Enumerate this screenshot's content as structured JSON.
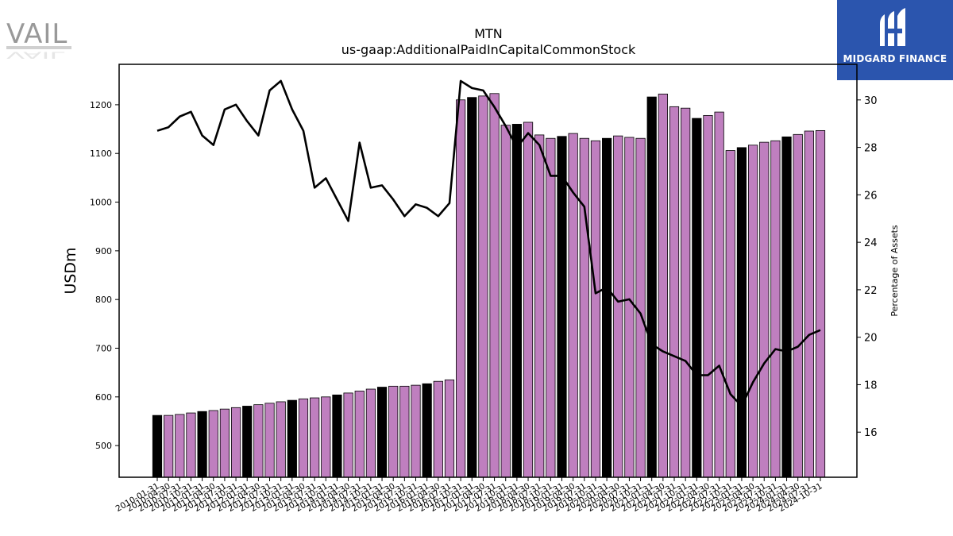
{
  "brand": {
    "left_logo_text": "VAIL",
    "right_logo_text": "MIDGARD FINANCE",
    "right_logo_bg": "#2b55ae"
  },
  "chart_data": {
    "type": "bar",
    "title": "MTN",
    "subtitle": "us-gaap:AdditionalPaidInCapitalCommonStock",
    "ylabel": "USDm",
    "y2label": "Percentage of Assets",
    "ylim": [
      435,
      1283
    ],
    "y2lim": [
      14.1,
      31.5
    ],
    "yticks": [
      500,
      600,
      700,
      800,
      900,
      1000,
      1100,
      1200
    ],
    "y2ticks": [
      16,
      18,
      20,
      22,
      24,
      26,
      28,
      30
    ],
    "bar_colors": {
      "annual": "#000000",
      "quarterly": "#bf7fbf"
    },
    "line_color": "#000000",
    "grid": false,
    "categories": [
      "2010-01-31",
      "2010-04-30",
      "2010-07-31",
      "2010-10-31",
      "2011-01-31",
      "2011-04-30",
      "2011-07-31",
      "2011-10-31",
      "2012-01-31",
      "2012-04-30",
      "2012-07-31",
      "2012-10-31",
      "2013-01-31",
      "2013-04-30",
      "2013-07-31",
      "2013-10-31",
      "2014-01-31",
      "2014-04-30",
      "2014-07-31",
      "2014-10-31",
      "2015-01-31",
      "2015-04-30",
      "2015-07-31",
      "2015-10-31",
      "2016-01-31",
      "2016-04-30",
      "2016-07-31",
      "2016-10-31",
      "2017-01-31",
      "2017-04-30",
      "2017-07-31",
      "2017-10-31",
      "2018-01-31",
      "2018-04-30",
      "2018-07-31",
      "2018-10-31",
      "2019-01-31",
      "2019-04-30",
      "2019-07-31",
      "2019-10-31",
      "2020-01-31",
      "2020-04-30",
      "2020-07-31",
      "2020-10-31",
      "2021-01-31",
      "2021-04-30",
      "2021-07-31",
      "2021-10-31",
      "2022-01-31",
      "2022-04-30",
      "2022-07-31",
      "2022-10-31",
      "2023-01-31",
      "2023-04-30",
      "2023-07-31",
      "2023-10-31",
      "2024-01-31",
      "2024-04-30",
      "2024-07-31",
      "2024-10-31"
    ],
    "annual_flags": [
      1,
      0,
      0,
      0,
      1,
      0,
      0,
      0,
      1,
      0,
      0,
      0,
      1,
      0,
      0,
      0,
      1,
      0,
      0,
      0,
      1,
      0,
      0,
      0,
      1,
      0,
      0,
      0,
      1,
      0,
      0,
      0,
      1,
      0,
      0,
      0,
      1,
      0,
      0,
      0,
      1,
      0,
      0,
      0,
      1,
      0,
      0,
      0,
      1,
      0,
      0,
      0,
      1,
      0,
      0,
      0,
      1,
      0,
      0,
      0
    ],
    "series": [
      {
        "name": "",
        "type": "bar",
        "values": [
          562,
          562,
          564,
          567,
          570,
          572,
          575,
          578,
          581,
          584,
          587,
          590,
          593,
          596,
          598,
          600,
          604,
          608,
          612,
          616,
          620,
          622,
          622,
          624,
          627,
          632,
          635,
          1210,
          1215,
          1218,
          1223,
          1158,
          1160,
          1164,
          1138,
          1131,
          1135,
          1141,
          1131,
          1126,
          1131,
          1136,
          1133,
          1131,
          1216,
          1222,
          1196,
          1193,
          1172,
          1178,
          1185,
          1106,
          1112,
          1117,
          1123,
          1126,
          1134,
          1139,
          1146,
          1147
        ]
      },
      {
        "name": "",
        "type": "line",
        "axis": "right",
        "values": [
          28.7,
          28.85,
          29.3,
          29.5,
          28.5,
          28.1,
          29.6,
          29.8,
          29.1,
          28.5,
          30.4,
          30.8,
          29.6,
          28.7,
          26.3,
          26.7,
          25.8,
          24.9,
          28.2,
          26.3,
          26.4,
          25.8,
          25.1,
          25.6,
          25.45,
          25.1,
          25.65,
          30.8,
          30.5,
          30.4,
          29.7,
          28.9,
          28.0,
          28.6,
          28.1,
          26.8,
          26.8,
          26.1,
          25.5,
          21.85,
          22.1,
          21.5,
          21.6,
          21.0,
          19.7,
          19.4,
          19.2,
          19.0,
          18.4,
          18.4,
          18.8,
          17.6,
          17.1,
          18.1,
          18.9,
          19.5,
          19.4,
          19.6,
          20.1,
          20.3
        ]
      }
    ]
  }
}
